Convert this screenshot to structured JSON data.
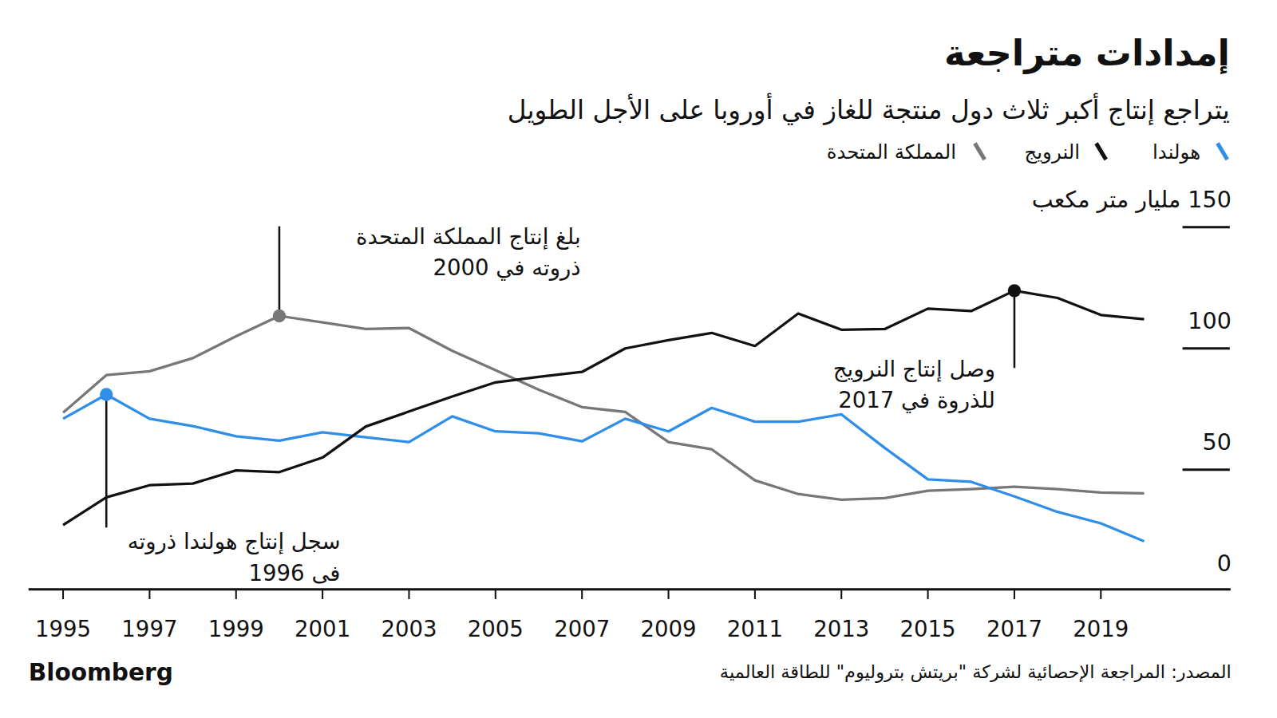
{
  "chart_data": {
    "type": "line",
    "title": "إمدادات متراجعة",
    "subtitle": "يتراجع إنتاج أكبر ثلاث دول منتجة للغاز في أوروبا على الأجل الطويل",
    "source": "المصدر: المراجعة الإحصائية لشركة \"بريتش بتروليوم\" للطاقة العالمية",
    "brand": "Bloomberg",
    "x": [
      1995,
      1996,
      1997,
      1998,
      1999,
      2000,
      2001,
      2002,
      2003,
      2004,
      2005,
      2006,
      2007,
      2008,
      2009,
      2010,
      2011,
      2012,
      2013,
      2014,
      2015,
      2016,
      2017,
      2018,
      2019,
      2020
    ],
    "xlim": [
      1994.2,
      2022
    ],
    "xticks": [
      1995,
      1997,
      1999,
      2001,
      2003,
      2005,
      2007,
      2009,
      2011,
      2013,
      2015,
      2017,
      2019
    ],
    "ylim": [
      0,
      150
    ],
    "yticks": [
      0,
      50,
      100,
      {
        "value": 150,
        "label": "150 مليار متر مكعب"
      }
    ],
    "grid": true,
    "legend": "top-right",
    "series": [
      {
        "name": "هولندا",
        "color": "#2f8ee8",
        "values": [
          71,
          81,
          71,
          68,
          63.8,
          62,
          65.4,
          63.4,
          61.4,
          72,
          65.8,
          65,
          61.7,
          71,
          65.8,
          75.5,
          69.8,
          69.8,
          72.8,
          59,
          46,
          45,
          39,
          32.6,
          27.9,
          20.5
        ]
      },
      {
        "name": "النرويج",
        "color": "#111111",
        "values": [
          27.2,
          38.6,
          43.6,
          44.3,
          49.7,
          49,
          55,
          67.8,
          74,
          80.2,
          86,
          88.3,
          90.3,
          100,
          103.4,
          106.4,
          101,
          114.4,
          107.7,
          108,
          116.4,
          115.4,
          123.8,
          120.8,
          113.8,
          112
        ]
      },
      {
        "name": "المملكة المتحدة",
        "color": "#777777",
        "values": [
          73.5,
          89,
          90.6,
          96,
          105,
          113.4,
          110.7,
          108,
          108.4,
          99,
          91,
          83,
          75.8,
          73.8,
          61.4,
          58.4,
          45.6,
          40,
          37.6,
          38.3,
          41.3,
          42,
          43,
          42,
          40.6,
          40.3
        ]
      }
    ],
    "annotations": [
      {
        "text": [
          "بلغ إنتاج المملكة المتحدة",
          "ذروته في 2000"
        ],
        "series": 2,
        "x": 2000
      },
      {
        "text": [
          "وصل إنتاج النرويج",
          "للذروة في 2017"
        ],
        "series": 1,
        "x": 2017
      },
      {
        "text": [
          "سجل إنتاج هولندا ذروته",
          "فى 1996"
        ],
        "series": 0,
        "x": 1996
      }
    ]
  }
}
